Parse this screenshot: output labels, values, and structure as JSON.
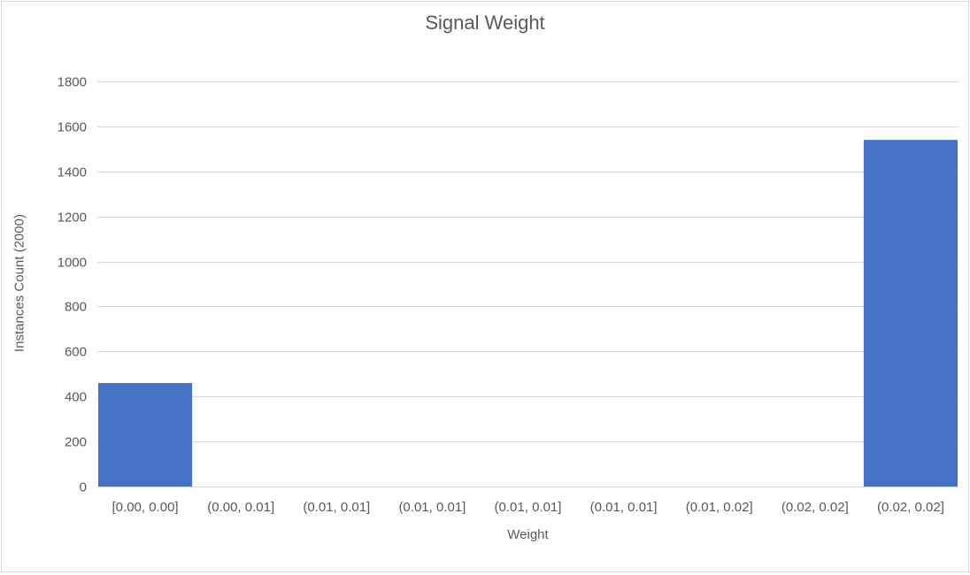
{
  "chart_data": {
    "type": "bar",
    "title": "Signal Weight",
    "xlabel": "Weight",
    "ylabel": "Instances Count (2000)",
    "categories": [
      "[0.00, 0.00]",
      "(0.00, 0.01]",
      "(0.01, 0.01]",
      "(0.01, 0.01]",
      "(0.01, 0.01]",
      "(0.01, 0.01]",
      "(0.01, 0.02]",
      "(0.02, 0.02]",
      "(0.02, 0.02]"
    ],
    "values": [
      460,
      0,
      0,
      0,
      0,
      0,
      0,
      0,
      1540
    ],
    "ylim": [
      0,
      1800
    ],
    "yticks": [
      0,
      200,
      400,
      600,
      800,
      1000,
      1200,
      1400,
      1600,
      1800
    ],
    "grid": true,
    "legend": "none",
    "colors": {
      "bar": "#4472C4",
      "grid": "#D9D9D9",
      "text": "#595959",
      "frame": "#D9D9D9"
    }
  }
}
